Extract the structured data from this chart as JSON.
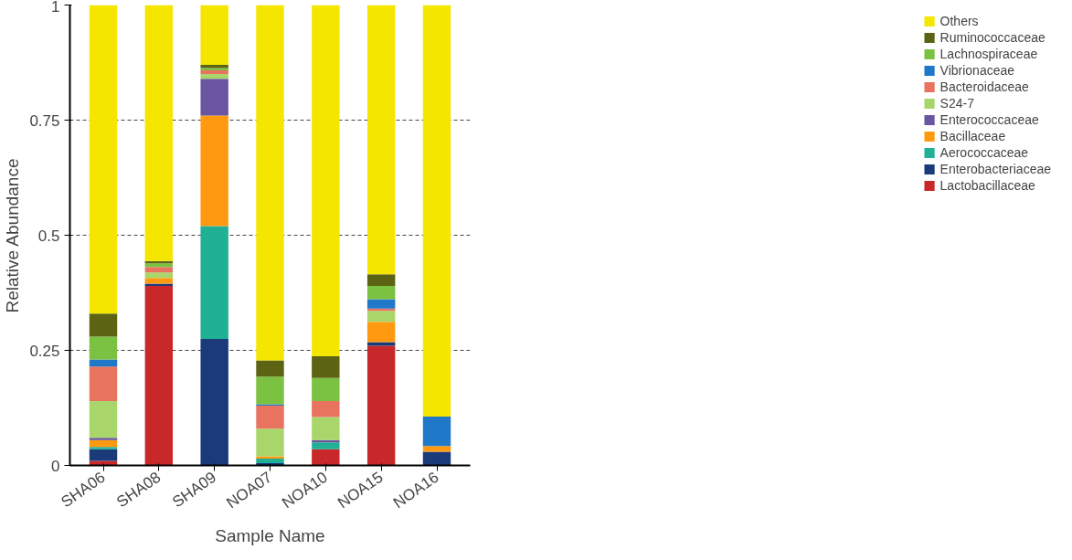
{
  "chart_data": {
    "type": "bar",
    "stacked": true,
    "xlabel": "Sample Name",
    "ylabel": "Relative Abundance",
    "categories": [
      "SHA06",
      "SHA08",
      "SHA09",
      "NOA07",
      "NOA10",
      "NOA15",
      "NOA16"
    ],
    "series": [
      {
        "name": "Lactobacillaceae",
        "color": "#c8282a",
        "values": [
          0.01,
          0.39,
          0,
          0,
          0.035,
          0.26,
          0
        ]
      },
      {
        "name": "Enterobacteriaceae",
        "color": "#1a3a7a",
        "values": [
          0.025,
          0.005,
          0.275,
          0.005,
          0,
          0.008,
          0.03
        ]
      },
      {
        "name": "Aerococcaceae",
        "color": "#1fb095",
        "values": [
          0.005,
          0,
          0.245,
          0.01,
          0.015,
          0,
          0
        ]
      },
      {
        "name": "Bacillaceae",
        "color": "#ff9a10",
        "values": [
          0.015,
          0.012,
          0.24,
          0.005,
          0,
          0.044,
          0.012
        ]
      },
      {
        "name": "Enterococcaceae",
        "color": "#6a55a0",
        "values": [
          0.005,
          0,
          0.08,
          0,
          0.005,
          0,
          0
        ]
      },
      {
        "name": "S24-7",
        "color": "#a8d66b",
        "values": [
          0.08,
          0.012,
          0.01,
          0.06,
          0.05,
          0.024,
          0
        ]
      },
      {
        "name": "Bacteroidaceae",
        "color": "#e8735f",
        "values": [
          0.075,
          0.012,
          0.008,
          0.05,
          0.035,
          0.005,
          0
        ]
      },
      {
        "name": "Vibrionaceae",
        "color": "#1f78c8",
        "values": [
          0.015,
          0,
          0,
          0.003,
          0,
          0.02,
          0.064
        ]
      },
      {
        "name": "Lachnospiraceae",
        "color": "#7cc242",
        "values": [
          0.05,
          0.008,
          0.005,
          0.06,
          0.05,
          0.029,
          0
        ]
      },
      {
        "name": "Ruminococcaceae",
        "color": "#5c6414",
        "values": [
          0.05,
          0.005,
          0.007,
          0.035,
          0.047,
          0.025,
          0
        ]
      },
      {
        "name": "Others",
        "color": "#f5e600",
        "values": [
          0.67,
          0.556,
          0.13,
          0.772,
          0.763,
          0.585,
          0.894
        ]
      }
    ],
    "ylim": [
      0,
      1
    ],
    "yticks": [
      0,
      0.25,
      0.5,
      0.75,
      1
    ],
    "grid": "y",
    "legend": "right"
  }
}
